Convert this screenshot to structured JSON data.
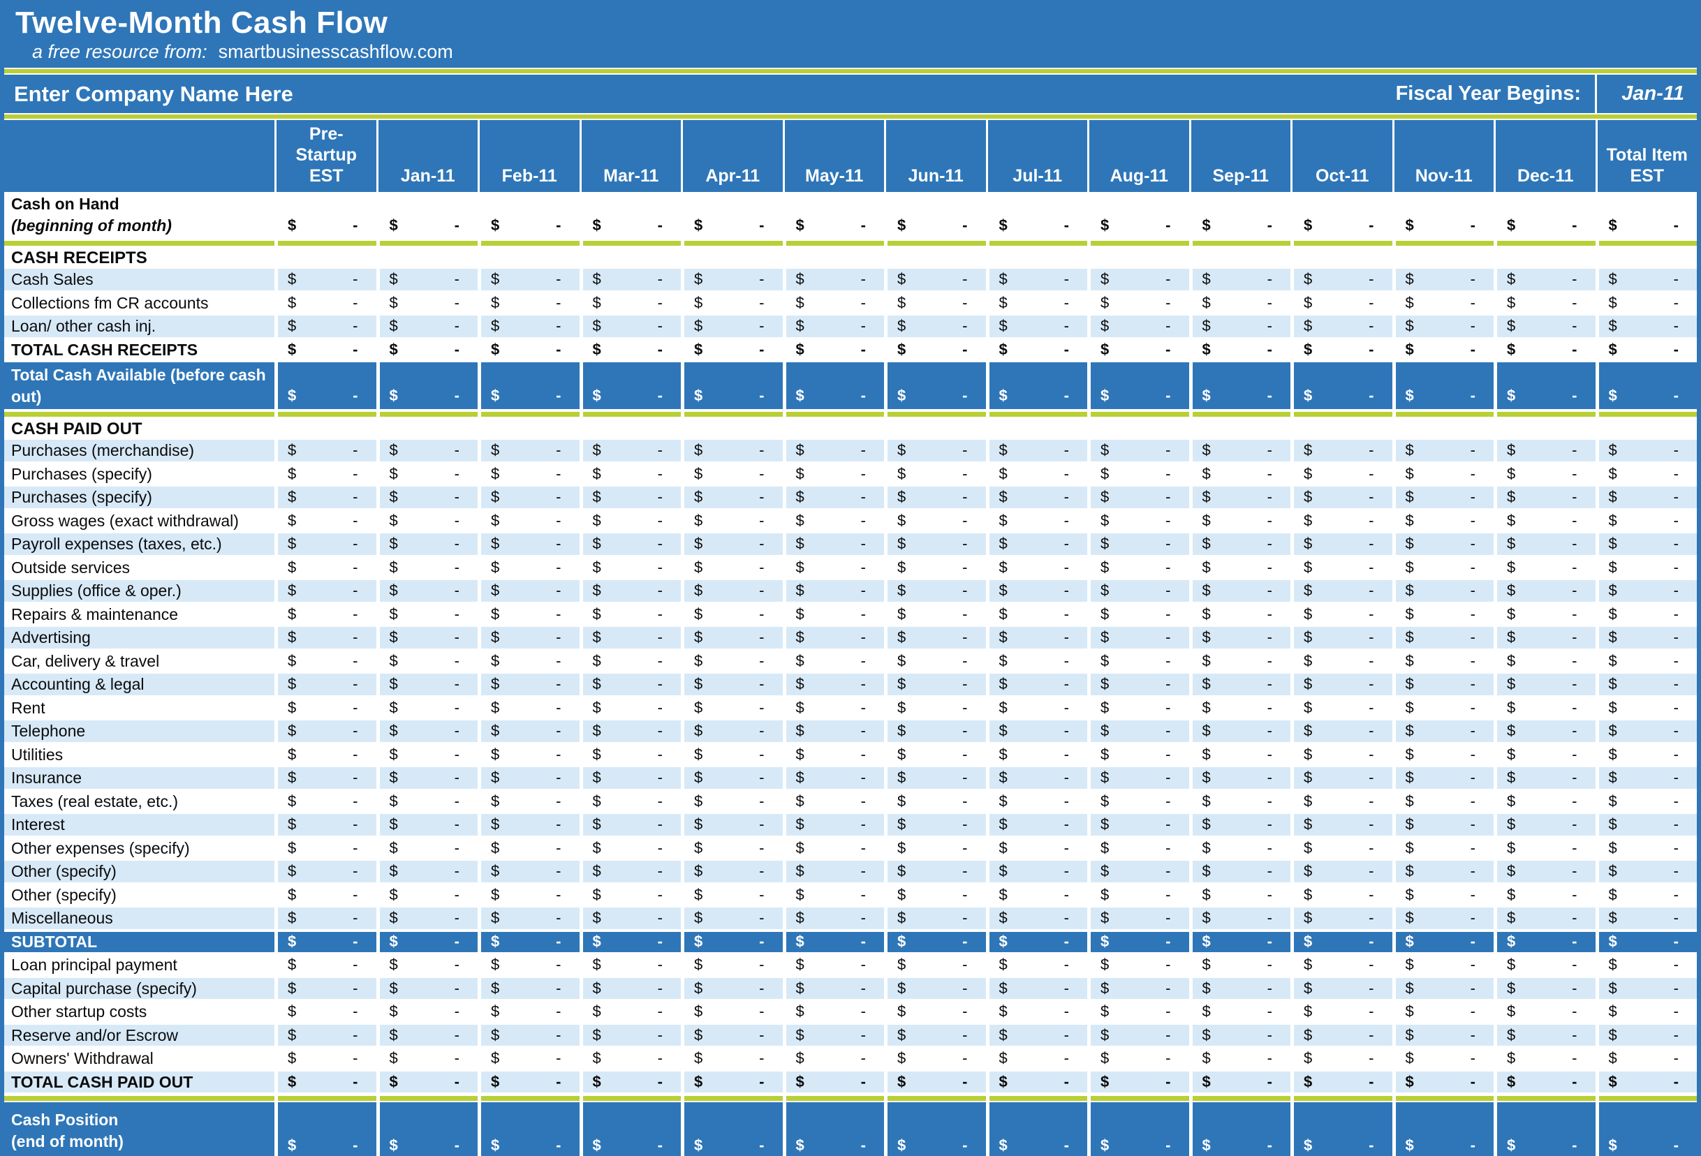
{
  "header": {
    "title": "Twelve-Month Cash Flow",
    "subtitle_prefix": "a free resource from:",
    "subtitle_site": "smartbusinesscashflow.com",
    "company_name": "Enter Company Name Here",
    "fiscal_label": "Fiscal Year Begins:",
    "fiscal_value": "Jan-11"
  },
  "colors": {
    "header_blue": "#2e76b8",
    "light_blue_row": "#d7e9f7",
    "divider_green": "#b9cf36",
    "text": "#0b0b0b",
    "header_text": "#ffffff"
  },
  "columns": [
    {
      "id": "pre-startup-est",
      "lines": [
        "Pre-",
        "Startup",
        "EST"
      ]
    },
    {
      "id": "jan-11",
      "lines": [
        "Jan-11"
      ]
    },
    {
      "id": "feb-11",
      "lines": [
        "Feb-11"
      ]
    },
    {
      "id": "mar-11",
      "lines": [
        "Mar-11"
      ]
    },
    {
      "id": "apr-11",
      "lines": [
        "Apr-11"
      ]
    },
    {
      "id": "may-11",
      "lines": [
        "May-11"
      ]
    },
    {
      "id": "jun-11",
      "lines": [
        "Jun-11"
      ]
    },
    {
      "id": "jul-11",
      "lines": [
        "Jul-11"
      ]
    },
    {
      "id": "aug-11",
      "lines": [
        "Aug-11"
      ]
    },
    {
      "id": "sep-11",
      "lines": [
        "Sep-11"
      ]
    },
    {
      "id": "oct-11",
      "lines": [
        "Oct-11"
      ]
    },
    {
      "id": "nov-11",
      "lines": [
        "Nov-11"
      ]
    },
    {
      "id": "dec-11",
      "lines": [
        "Dec-11"
      ]
    },
    {
      "id": "total-item-est",
      "lines": [
        "Total Item",
        "EST"
      ]
    }
  ],
  "cell": {
    "currency": "$",
    "amount": "-"
  },
  "rows": [
    {
      "type": "twoline",
      "label": "Cash on Hand",
      "label2": "(beginning of month)",
      "bold": true
    },
    {
      "type": "greenline"
    },
    {
      "type": "section",
      "label": "CASH RECEIPTS"
    },
    {
      "type": "data",
      "shade": "lb",
      "label": "Cash Sales"
    },
    {
      "type": "data",
      "shade": "w",
      "label": "Collections fm CR accounts"
    },
    {
      "type": "data",
      "shade": "lb",
      "label": "Loan/ other cash inj."
    },
    {
      "type": "data",
      "shade": "w",
      "label": "TOTAL CASH RECEIPTS",
      "bold": true
    },
    {
      "type": "bluetwo",
      "label": "Total Cash Available (before cash out)",
      "h": "h69"
    },
    {
      "type": "greenline"
    },
    {
      "type": "section",
      "label": "CASH PAID OUT"
    },
    {
      "type": "data",
      "shade": "lb",
      "label": "Purchases (merchandise)"
    },
    {
      "type": "data",
      "shade": "w",
      "label": "Purchases (specify)"
    },
    {
      "type": "data",
      "shade": "lb",
      "label": "Purchases (specify)"
    },
    {
      "type": "data",
      "shade": "w",
      "label": "Gross wages (exact withdrawal)"
    },
    {
      "type": "data",
      "shade": "lb",
      "label": "Payroll expenses (taxes, etc.)"
    },
    {
      "type": "data",
      "shade": "w",
      "label": "Outside services"
    },
    {
      "type": "data",
      "shade": "lb",
      "label": "Supplies (office & oper.)"
    },
    {
      "type": "data",
      "shade": "w",
      "label": "Repairs & maintenance"
    },
    {
      "type": "data",
      "shade": "lb",
      "label": "Advertising"
    },
    {
      "type": "data",
      "shade": "w",
      "label": "Car, delivery & travel"
    },
    {
      "type": "data",
      "shade": "lb",
      "label": "Accounting & legal"
    },
    {
      "type": "data",
      "shade": "w",
      "label": "Rent"
    },
    {
      "type": "data",
      "shade": "lb",
      "label": "Telephone"
    },
    {
      "type": "data",
      "shade": "w",
      "label": "Utilities"
    },
    {
      "type": "data",
      "shade": "lb",
      "label": "Insurance"
    },
    {
      "type": "data",
      "shade": "w",
      "label": "Taxes (real estate, etc.)"
    },
    {
      "type": "data",
      "shade": "lb",
      "label": "Interest"
    },
    {
      "type": "data",
      "shade": "w",
      "label": "Other expenses (specify)"
    },
    {
      "type": "data",
      "shade": "lb",
      "label": "Other (specify)"
    },
    {
      "type": "data",
      "shade": "w",
      "label": "Other (specify)"
    },
    {
      "type": "data",
      "shade": "lb",
      "label": "Miscellaneous"
    },
    {
      "type": "blue",
      "label": "SUBTOTAL",
      "bold": true
    },
    {
      "type": "data",
      "shade": "w",
      "label": "Loan principal payment"
    },
    {
      "type": "data",
      "shade": "lb",
      "label": "Capital purchase (specify)"
    },
    {
      "type": "data",
      "shade": "w",
      "label": "Other startup costs"
    },
    {
      "type": "data",
      "shade": "lb",
      "label": "Reserve and/or Escrow"
    },
    {
      "type": "data",
      "shade": "w",
      "label": "Owners' Withdrawal"
    },
    {
      "type": "data",
      "shade": "lb",
      "label": "TOTAL CASH PAID OUT",
      "bold": true
    },
    {
      "type": "greenline"
    },
    {
      "type": "bluetwo",
      "label": "Cash Position",
      "label2": "(end of month)",
      "h": "h80"
    }
  ]
}
